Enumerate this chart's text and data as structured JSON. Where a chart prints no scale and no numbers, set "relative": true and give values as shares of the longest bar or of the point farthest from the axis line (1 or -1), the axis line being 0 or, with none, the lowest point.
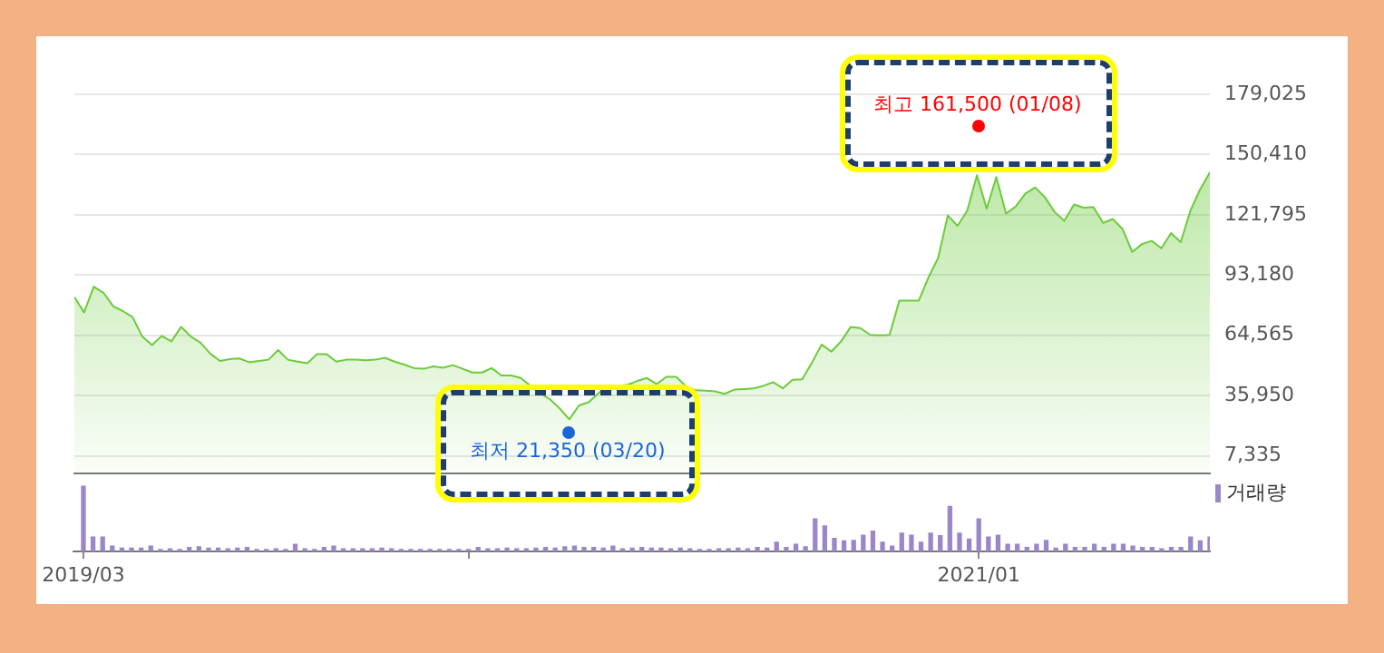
{
  "chart_data": [
    {
      "type": "area",
      "color": "#6ccb3c",
      "categories": [
        null,
        null,
        null,
        null,
        null,
        null,
        null,
        null,
        null,
        null,
        null,
        null,
        null,
        null,
        null,
        null,
        null,
        null,
        null,
        null,
        null,
        null,
        null,
        null,
        null,
        null,
        null,
        null,
        null,
        null,
        null,
        null,
        null,
        null,
        null,
        null,
        null,
        null,
        null,
        null,
        null,
        null,
        null,
        null,
        null,
        null,
        null,
        null,
        null,
        null,
        null,
        null,
        null,
        null,
        null,
        null,
        null,
        null,
        null,
        null,
        null,
        null,
        null,
        null,
        null,
        null,
        null,
        null,
        null,
        null,
        null,
        null,
        null,
        null,
        null,
        null,
        null,
        null,
        null,
        null,
        null,
        null,
        null,
        null,
        null,
        null,
        null,
        null,
        null,
        null,
        null,
        null,
        null,
        null,
        null,
        null,
        null,
        null,
        null,
        null,
        null,
        null,
        null,
        null,
        null,
        null,
        null,
        null,
        null,
        null,
        null,
        null,
        null,
        null,
        null,
        null,
        null,
        null
      ],
      "values": [
        82800,
        75500,
        87700,
        84800,
        78400,
        76100,
        73200,
        64000,
        59900,
        64300,
        61700,
        68600,
        64000,
        61100,
        55900,
        52400,
        53300,
        53600,
        51800,
        52400,
        53000,
        57600,
        53000,
        52100,
        51300,
        55600,
        55600,
        52100,
        53000,
        53000,
        52700,
        53000,
        53900,
        52100,
        50700,
        49000,
        48700,
        49800,
        49200,
        50400,
        48700,
        46900,
        46900,
        49000,
        45500,
        45500,
        44300,
        40600,
        37100,
        34200,
        29900,
        24700,
        31300,
        32800,
        37100,
        40600,
        40600,
        41100,
        42900,
        44300,
        41400,
        44900,
        44900,
        40600,
        38500,
        38300,
        38000,
        36800,
        38800,
        39100,
        39400,
        40600,
        42300,
        39400,
        43500,
        43700,
        51600,
        60200,
        56800,
        61700,
        68600,
        68000,
        64800,
        64600,
        64800,
        81000,
        81000,
        81000,
        92000,
        101300,
        121500,
        116600,
        123800,
        140600,
        124700,
        139700,
        122400,
        125800,
        131900,
        134800,
        130200,
        123200,
        118900,
        126700,
        125200,
        125500,
        118000,
        119800,
        115100,
        104200,
        107900,
        109400,
        105900,
        113100,
        108800,
        123800,
        133900,
        142000
      ],
      "ylim": [
        -1000,
        179025
      ],
      "yticks": [
        {
          "value": 7335,
          "label": "7,335"
        },
        {
          "value": 35950,
          "label": "35,950"
        },
        {
          "value": 64565,
          "label": "64,565"
        },
        {
          "value": 93180,
          "label": "93,180"
        },
        {
          "value": 121795,
          "label": "121,795"
        },
        {
          "value": 150410,
          "label": "150,410"
        },
        {
          "value": 179025,
          "label": "179,025"
        }
      ],
      "grid": "y",
      "tick_labels": "y",
      "annotations": [
        "최고 161,500 (01/08)",
        "최저 21,350 (03/20)"
      ]
    },
    {
      "type": "bar",
      "relative": true,
      "legend": "top right",
      "tick_labels": "x",
      "x": [
        "2019-03-29",
        "2019-04-05",
        "2019-04-12",
        "2019-04-19",
        "2019-04-26",
        "2019-05-03",
        "2019-05-10",
        "2019-05-17",
        "2019-05-24",
        "2019-05-31",
        "2019-06-07",
        "2019-06-14",
        "2019-06-21",
        "2019-06-28",
        "2019-07-05",
        "2019-07-12",
        "2019-07-19",
        "2019-07-26",
        "2019-08-02",
        "2019-08-09",
        "2019-08-16",
        "2019-08-23",
        "2019-08-30",
        "2019-09-06",
        "2019-09-13",
        "2019-09-20",
        "2019-09-27",
        "2019-10-04",
        "2019-10-11",
        "2019-10-18",
        "2019-10-25",
        "2019-11-01",
        "2019-11-08",
        "2019-11-15",
        "2019-11-22",
        "2019-11-29",
        "2019-12-06",
        "2019-12-13",
        "2019-12-20",
        "2019-12-27",
        "2020-01-03",
        "2020-01-10",
        "2020-01-17",
        "2020-01-24",
        "2020-01-31",
        "2020-02-07",
        "2020-02-14",
        "2020-02-21",
        "2020-02-28",
        "2020-03-06",
        "2020-03-13",
        "2020-03-20",
        "2020-03-27",
        "2020-04-03",
        "2020-04-10",
        "2020-04-17",
        "2020-04-24",
        "2020-05-01",
        "2020-05-08",
        "2020-05-15",
        "2020-05-22",
        "2020-05-29",
        "2020-06-05",
        "2020-06-12",
        "2020-06-19",
        "2020-06-26",
        "2020-07-03",
        "2020-07-10",
        "2020-07-17",
        "2020-07-24",
        "2020-07-31",
        "2020-08-07",
        "2020-08-14",
        "2020-08-21",
        "2020-08-28",
        "2020-09-04",
        "2020-09-11",
        "2020-09-18",
        "2020-09-25",
        "2020-10-02",
        "2020-10-09",
        "2020-10-16",
        "2020-10-23",
        "2020-10-30",
        "2020-11-06",
        "2020-11-13",
        "2020-11-20",
        "2020-11-27",
        "2020-12-04",
        "2020-12-11",
        "2020-12-18",
        "2020-12-25",
        "2021-01-01",
        "2021-01-08",
        "2021-01-15",
        "2021-01-22",
        "2021-01-29",
        "2021-02-05",
        "2021-02-12",
        "2021-02-19",
        "2021-02-26",
        "2021-03-05",
        "2021-03-12",
        "2021-03-19",
        "2021-03-26",
        "2021-04-02",
        "2021-04-09",
        "2021-04-16",
        "2021-04-23",
        "2021-04-30",
        "2021-05-07",
        "2021-05-14",
        "2021-05-21",
        "2021-05-28",
        "2021-06-04",
        "2021-06-11",
        "2021-06-18",
        "2021-06-25"
      ],
      "xlim": [
        "2019-03-22",
        "2021-06-25"
      ],
      "xticks": [
        {
          "value": "2019-03-29",
          "label": "2019/03"
        },
        {
          "value": "2020-01-03",
          "label": null
        },
        {
          "value": "2021-01-08",
          "label": "2021/01"
        }
      ],
      "series": [
        {
          "name": "거래량",
          "color": "#9b86c9",
          "values": [
            1,
            0.22,
            0.22,
            0.08,
            0.05,
            0.05,
            0.05,
            0.08,
            0.03,
            0.04,
            0.03,
            0.06,
            0.07,
            0.05,
            0.05,
            0.04,
            0.05,
            0.06,
            0.03,
            0.03,
            0.04,
            0.03,
            0.11,
            0.04,
            0.03,
            0.06,
            0.08,
            0.04,
            0.04,
            0.04,
            0.04,
            0.05,
            0.04,
            0.03,
            0.03,
            0.03,
            0.03,
            0.03,
            0.03,
            0.03,
            0.03,
            0.06,
            0.04,
            0.04,
            0.05,
            0.04,
            0.04,
            0.05,
            0.06,
            0.05,
            0.07,
            0.08,
            0.06,
            0.06,
            0.05,
            0.08,
            0.04,
            0.05,
            0.06,
            0.05,
            0.05,
            0.04,
            0.05,
            0.04,
            0.03,
            0.03,
            0.04,
            0.04,
            0.05,
            0.04,
            0.06,
            0.05,
            0.14,
            0.06,
            0.11,
            0.07,
            0.5,
            0.39,
            0.2,
            0.16,
            0.17,
            0.25,
            0.31,
            0.14,
            0.08,
            0.28,
            0.25,
            0.14,
            0.28,
            0.24,
            0.69,
            0.28,
            0.19,
            0.5,
            0.22,
            0.25,
            0.11,
            0.11,
            0.06,
            0.11,
            0.17,
            0.05,
            0.11,
            0.06,
            0.06,
            0.11,
            0.06,
            0.11,
            0.11,
            0.08,
            0.06,
            0.06,
            0.04,
            0.06,
            0.06,
            0.22,
            0.16,
            0.22
          ]
        }
      ]
    }
  ]
}
